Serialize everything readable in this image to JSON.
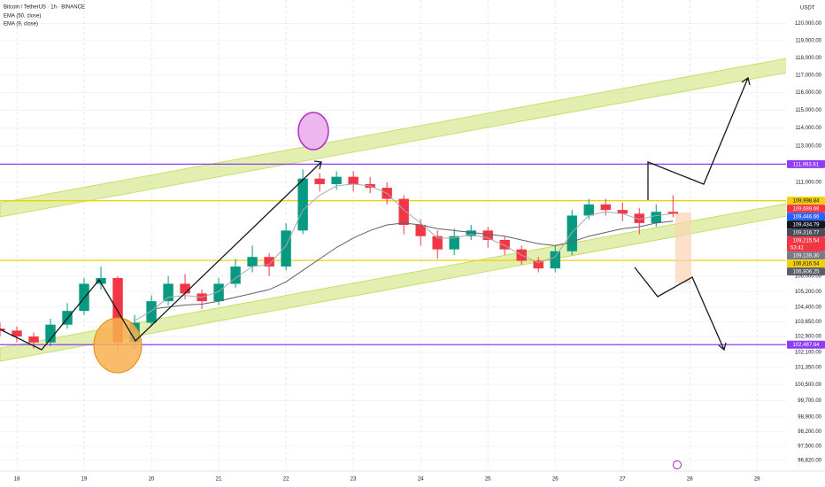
{
  "chart_data": {
    "type": "candlestick",
    "title": "Bitcoin / TetherUS · 1h · BINANCE",
    "currency": "USDT",
    "log_scale": true,
    "grid": true,
    "up_color": "#089981",
    "down_color": "#f23645",
    "xlim": [
      17.75,
      29.43
    ],
    "xticks": [
      18,
      19,
      20,
      21,
      22,
      23,
      24,
      25,
      26,
      27,
      28,
      29
    ],
    "ylim": [
      96400,
      121400
    ],
    "yticks": [
      {
        "value": 120000,
        "label": "120,000.00"
      },
      {
        "value": 119000,
        "label": "119,000.00"
      },
      {
        "value": 118000,
        "label": "118,000.00"
      },
      {
        "value": 117000,
        "label": "117,000.00"
      },
      {
        "value": 116000,
        "label": "116,000.00"
      },
      {
        "value": 115000,
        "label": "115,000.00"
      },
      {
        "value": 114000,
        "label": "114,000.00"
      },
      {
        "value": 113000,
        "label": "113,000.00"
      },
      {
        "value": 111000,
        "label": "111,000.00"
      },
      {
        "value": 106000,
        "label": "106,000.00"
      },
      {
        "value": 105200,
        "label": "105,200.00"
      },
      {
        "value": 104400,
        "label": "104,400.00"
      },
      {
        "value": 103650,
        "label": "103,650.00"
      },
      {
        "value": 102900,
        "label": "102,900.00"
      },
      {
        "value": 102100,
        "label": "102,100.00"
      },
      {
        "value": 101350,
        "label": "101,350.00"
      },
      {
        "value": 100500,
        "label": "100,500.00"
      },
      {
        "value": 99700,
        "label": "99,700.00"
      },
      {
        "value": 98900,
        "label": "98,900.00"
      },
      {
        "value": 98200,
        "label": "98,200.00"
      },
      {
        "value": 97500,
        "label": "97,500.00"
      },
      {
        "value": 96820,
        "label": "96,820.00"
      }
    ],
    "x": [
      17.75,
      18,
      18.25,
      18.5,
      18.75,
      19,
      19.25,
      19.5,
      19.75,
      20,
      20.25,
      20.5,
      20.75,
      21,
      21.25,
      21.5,
      21.75,
      22,
      22.25,
      22.5,
      22.75,
      23,
      23.25,
      23.5,
      23.75,
      24,
      24.25,
      24.5,
      24.75,
      25,
      25.25,
      25.5,
      25.75,
      26,
      26.25,
      26.5,
      26.75,
      27,
      27.25,
      27.5,
      27.75
    ],
    "open": [
      103300,
      103200,
      102900,
      102600,
      103500,
      104200,
      105600,
      105900,
      102600,
      103600,
      104700,
      105600,
      105100,
      104700,
      105600,
      106500,
      107000,
      106500,
      108400,
      111200,
      110900,
      111300,
      110900,
      110700,
      110100,
      108700,
      108100,
      107400,
      108100,
      108400,
      107900,
      107400,
      106800,
      106400,
      107300,
      109200,
      109800,
      109500,
      109300,
      108800,
      109400
    ],
    "high": [
      103600,
      103400,
      103100,
      103800,
      104600,
      105900,
      106500,
      106000,
      104000,
      105000,
      106000,
      106100,
      105300,
      105900,
      106900,
      107600,
      107200,
      108800,
      111700,
      111500,
      111600,
      111600,
      111300,
      111000,
      110300,
      109000,
      108400,
      108500,
      108700,
      108600,
      108100,
      107600,
      107000,
      107600,
      109500,
      110100,
      110100,
      109900,
      109600,
      109800,
      110300
    ],
    "low": [
      102900,
      102600,
      102300,
      102400,
      103300,
      104000,
      105300,
      102200,
      102300,
      103400,
      104500,
      104800,
      104300,
      104500,
      105400,
      106200,
      106000,
      106300,
      108200,
      110500,
      110600,
      110500,
      110400,
      109800,
      108200,
      107600,
      106900,
      107100,
      107900,
      107500,
      107100,
      106600,
      106200,
      106200,
      107100,
      109000,
      109200,
      108900,
      108200,
      108600,
      109100
    ],
    "close": [
      103200,
      102900,
      102600,
      103500,
      104200,
      105600,
      105900,
      102600,
      103600,
      104700,
      105600,
      105100,
      104700,
      105600,
      106500,
      107000,
      106500,
      108400,
      111200,
      110900,
      111300,
      110900,
      110700,
      110100,
      108700,
      108100,
      107400,
      108100,
      108400,
      107900,
      107400,
      106800,
      106400,
      107300,
      109200,
      109800,
      109500,
      109300,
      108800,
      109400,
      109300
    ],
    "series": [
      {
        "name": "EMA (50, close)",
        "color": "#5d606b",
        "values": [
          null,
          null,
          null,
          null,
          null,
          null,
          null,
          null,
          null,
          104300,
          104400,
          104500,
          104550,
          104700,
          104900,
          105100,
          105300,
          105700,
          106300,
          106900,
          107500,
          108000,
          108400,
          108700,
          108800,
          108700,
          108500,
          108400,
          108300,
          108200,
          108100,
          107900,
          107700,
          107600,
          107800,
          108100,
          108300,
          108500,
          108600,
          108800,
          108900
        ]
      },
      {
        "name": "EMA (9, close)",
        "color": "#a8aab2",
        "values": [
          null,
          null,
          null,
          null,
          null,
          null,
          null,
          null,
          103700,
          104200,
          104900,
          105000,
          104900,
          105200,
          105900,
          106500,
          106600,
          107600,
          109500,
          110300,
          110800,
          110900,
          110800,
          110400,
          109500,
          108800,
          108000,
          108000,
          108200,
          108000,
          107600,
          107100,
          106700,
          107000,
          108300,
          109200,
          109400,
          109300,
          109000,
          109200,
          109300
        ]
      }
    ],
    "price_labels": [
      {
        "value": 111993.61,
        "label": "111,993.61",
        "color": "#8e3ff5",
        "text_color": "#ffffff",
        "line": true
      },
      {
        "value": 109998.84,
        "label": "109,998.84",
        "color": "#f2cf0c",
        "text_color": "#131722",
        "line": true
      },
      {
        "value": 109689.66,
        "label": "109,689.66",
        "color": "#f23645",
        "text_color": "#ffffff",
        "line": false
      },
      {
        "value": 109446.66,
        "label": "109,446.66",
        "color": "#2962ff",
        "text_color": "#ffffff",
        "line": false
      },
      {
        "value": 109434.79,
        "label": "109,434.79",
        "color": "#131722",
        "text_color": "#ffffff",
        "line": false
      },
      {
        "value": 109316.77,
        "label": "109,316.77",
        "color": "#4a4d57",
        "text_color": "#ffffff",
        "line": false
      },
      {
        "value": 109215.54,
        "label": "109,215.54",
        "color": "#f23645",
        "text_color": "#ffffff",
        "line": false,
        "countdown": "53:41"
      },
      {
        "value": 109139.3,
        "label": "109,139.30",
        "color": "#787b86",
        "text_color": "#ffffff",
        "line": false
      },
      {
        "value": 106816.54,
        "label": "106,816.54",
        "color": "#f2cf0c",
        "text_color": "#131722",
        "line": true
      },
      {
        "value": 106806.25,
        "label": "106,806.25",
        "color": "#5d606b",
        "text_color": "#ffffff",
        "line": false
      },
      {
        "value": 102487.64,
        "label": "102,487.64",
        "color": "#8e3ff5",
        "text_color": "#ffffff",
        "line": true
      }
    ]
  }
}
